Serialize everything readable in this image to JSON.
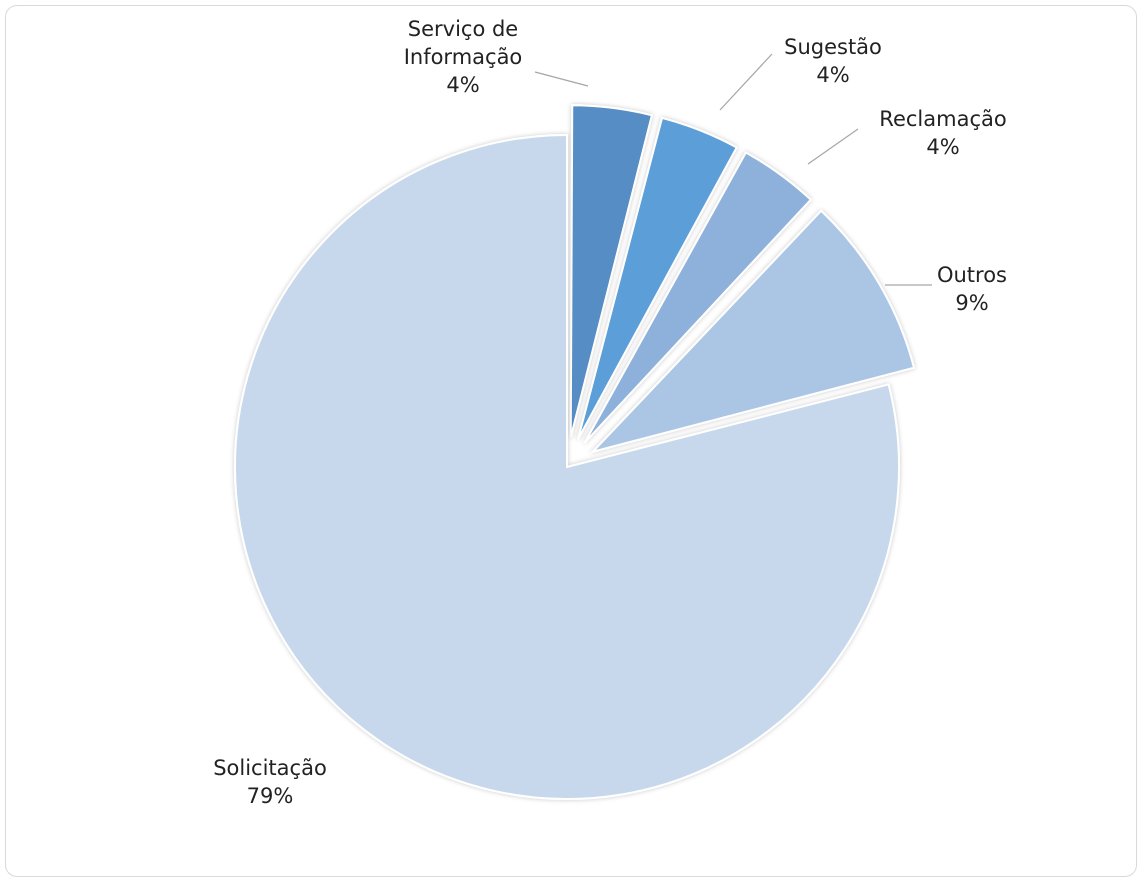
{
  "chart_data": {
    "type": "pie",
    "title": "",
    "slices": [
      {
        "name": "Serviço de Informação",
        "label_lines": [
          "Serviço de",
          "Informação"
        ],
        "value": 4,
        "pct_label": "4%",
        "color": "#548dc4",
        "exploded": true
      },
      {
        "name": "Sugestão",
        "label_lines": [
          "Sugestão"
        ],
        "value": 4,
        "pct_label": "4%",
        "color": "#5b9ed8",
        "exploded": true
      },
      {
        "name": "Reclamação",
        "label_lines": [
          "Reclamação"
        ],
        "value": 4,
        "pct_label": "4%",
        "color": "#8eb1dc",
        "exploded": true
      },
      {
        "name": "Outros",
        "label_lines": [
          "Outros"
        ],
        "value": 9,
        "pct_label": "9%",
        "color": "#abc5e4",
        "exploded": true
      },
      {
        "name": "Solicitação",
        "label_lines": [
          "Solicitação"
        ],
        "value": 79,
        "pct_label": "79%",
        "color": "#c7d8ec",
        "exploded": false
      }
    ],
    "legend": "none",
    "data_labels": "outside with leader lines"
  }
}
